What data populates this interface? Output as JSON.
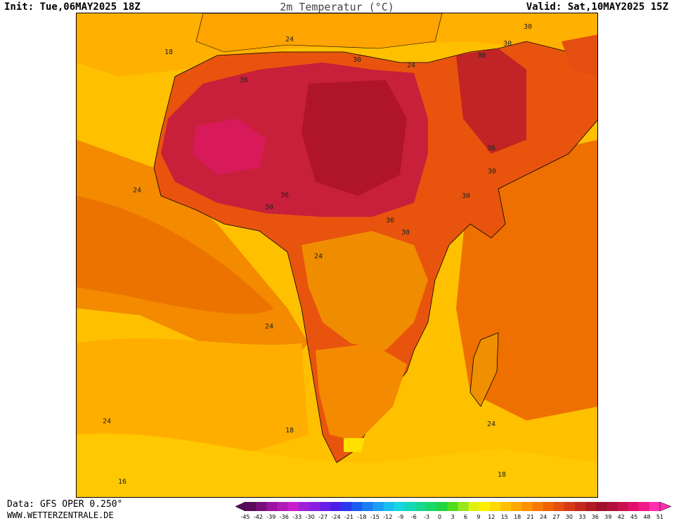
{
  "header": {
    "init": "Init: Tue,06MAY2025 18Z",
    "title": "2m Temperatur (°C)",
    "valid": "Valid: Sat,10MAY2025 15Z"
  },
  "footer": {
    "data_source": "Data: GFS OPER 0.250°",
    "url": "WWW.WETTERZENTRALE.DE"
  },
  "map": {
    "region": "Africa",
    "contour_labels": [
      {
        "text": "18",
        "id": "c1"
      },
      {
        "text": "24",
        "id": "c2"
      },
      {
        "text": "30",
        "id": "c3"
      },
      {
        "text": "30",
        "id": "c4"
      },
      {
        "text": "30",
        "id": "c5"
      },
      {
        "text": "36",
        "id": "c6"
      },
      {
        "text": "24",
        "id": "c7"
      },
      {
        "text": "36",
        "id": "c8"
      },
      {
        "text": "30",
        "id": "c9"
      },
      {
        "text": "24",
        "id": "c10"
      },
      {
        "text": "36",
        "id": "c11"
      },
      {
        "text": "30",
        "id": "c12"
      },
      {
        "text": "30",
        "id": "c13"
      },
      {
        "text": "36",
        "id": "c14"
      },
      {
        "text": "30",
        "id": "c15"
      },
      {
        "text": "24",
        "id": "c16"
      },
      {
        "text": "24",
        "id": "c17"
      },
      {
        "text": "24",
        "id": "c18"
      },
      {
        "text": "18",
        "id": "c19"
      },
      {
        "text": "24",
        "id": "c20"
      },
      {
        "text": "18",
        "id": "c21"
      },
      {
        "text": "16",
        "id": "c22"
      },
      {
        "text": "30",
        "id": "c23"
      }
    ]
  },
  "legend": {
    "ticks": [
      "-45",
      "-42",
      "-39",
      "-36",
      "-33",
      "-30",
      "-27",
      "-24",
      "-21",
      "-18",
      "-15",
      "-12",
      "-9",
      "-6",
      "-3",
      "0",
      "3",
      "6",
      "9",
      "12",
      "15",
      "18",
      "21",
      "24",
      "27",
      "30",
      "33",
      "36",
      "39",
      "42",
      "45",
      "48",
      "51"
    ],
    "colors": [
      "#5a0a5a",
      "#7a0e7a",
      "#9a14a0",
      "#b21ab8",
      "#c81ecc",
      "#a020d8",
      "#8a1ee0",
      "#6a1ee6",
      "#4a20e8",
      "#2a38ec",
      "#1e5cf0",
      "#1a7ef2",
      "#1a9ef4",
      "#18bef2",
      "#16d6e0",
      "#14d8b4",
      "#16d890",
      "#18d86a",
      "#20d440",
      "#50dc20",
      "#9ae61c",
      "#e2f010",
      "#fff000",
      "#ffd800",
      "#ffc000",
      "#ffa800",
      "#ff9000",
      "#f87800",
      "#ee6200",
      "#e44e10",
      "#d63a18",
      "#c42820",
      "#b01a22",
      "#a01028",
      "#b0103a",
      "#c81050",
      "#e0106a",
      "#f01a88",
      "#ff30b0"
    ]
  }
}
